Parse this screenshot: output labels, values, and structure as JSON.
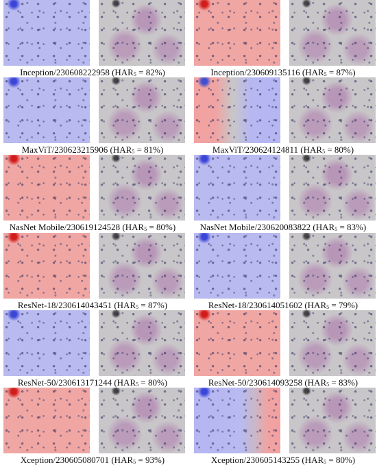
{
  "panels": [
    {
      "prefix": "Inception/230608222958 (HAR",
      "sub": "5",
      "suffix": " = 82%)"
    },
    {
      "prefix": "Inception/230609135116 (HAR",
      "sub": "5",
      "suffix": " = 87%)"
    },
    {
      "prefix": "MaxViT/230623215906 (HAR",
      "sub": "5",
      "suffix": " = 81%)"
    },
    {
      "prefix": "MaxViT/230624124811 (HAR",
      "sub": "5",
      "suffix": " = 80%)"
    },
    {
      "prefix": "NasNet Mobile/230619124528 (HAR",
      "sub": "5",
      "suffix": " = 80%)"
    },
    {
      "prefix": "NasNet Mobile/230620083822 (HAR",
      "sub": "5",
      "suffix": " = 83%)"
    },
    {
      "prefix": "ResNet-18/230614043451 (HAR",
      "sub": "5",
      "suffix": " = 87%)"
    },
    {
      "prefix": "ResNet-18/230614051602 (HAR",
      "sub": "5",
      "suffix": " = 79%)"
    },
    {
      "prefix": "ResNet-50/230613171244 (HAR",
      "sub": "5",
      "suffix": " = 80%)"
    },
    {
      "prefix": "ResNet-50/230614093258 (HAR",
      "sub": "5",
      "suffix": " = 83%)"
    },
    {
      "prefix": "Xception/230605080701 (HAR",
      "sub": "5",
      "suffix": " = 93%)"
    },
    {
      "prefix": "Xception/230605143255 (HAR",
      "sub": "5",
      "suffix": " = 80%)"
    }
  ]
}
